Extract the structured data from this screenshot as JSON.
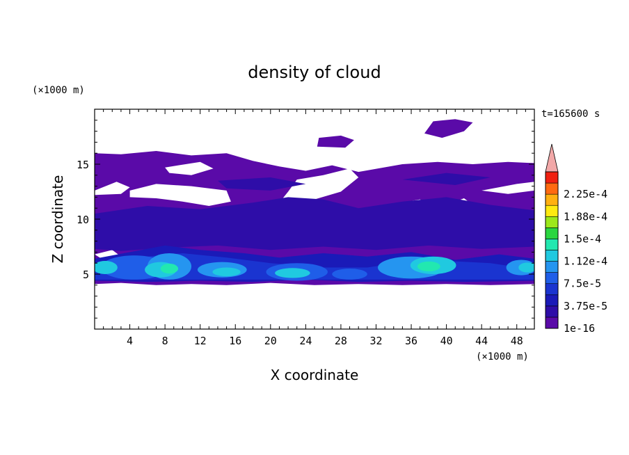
{
  "chart_data": {
    "type": "heatmap",
    "title": "density of cloud",
    "xlabel": "X coordinate",
    "ylabel": "Z coordinate",
    "x_unit": "(×1000 m)",
    "y_unit": "(×1000 m)",
    "time_label": "t=165600 s",
    "xlim": [
      0,
      50
    ],
    "ylim": [
      0,
      20
    ],
    "x_ticks": [
      "4",
      "8",
      "12",
      "16",
      "20",
      "24",
      "28",
      "32",
      "36",
      "40",
      "44",
      "48"
    ],
    "y_ticks": [
      "5",
      "10",
      "15"
    ],
    "colorbar": {
      "labels": [
        "1e-16",
        "3.75e-5",
        "7.5e-5",
        "1.12e-4",
        "1.5e-4",
        "1.88e-4",
        "2.25e-4"
      ],
      "levels": 14,
      "colors": [
        "#5a0aa8",
        "#2e0da8",
        "#1a1ab8",
        "#1a34d0",
        "#1f5ee8",
        "#2595f0",
        "#20c9e0",
        "#22e8b0",
        "#2ad640",
        "#9ce81a",
        "#ffea10",
        "#ffb010",
        "#ff6a10",
        "#f02010"
      ],
      "extend_color": "#f2a8a8"
    },
    "description_regions": {
      "cloud_layer_z": [
        4,
        16
      ],
      "upper_patches_z": [
        17,
        19
      ]
    }
  }
}
